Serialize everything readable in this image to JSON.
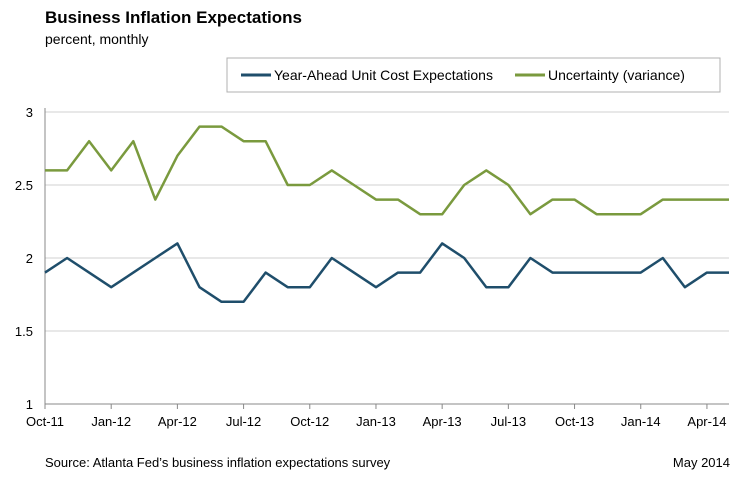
{
  "chart_data": {
    "type": "line",
    "title": "Business Inflation Expectations",
    "subtitle": "percent, monthly",
    "source": "Source: Atlanta Fed’s business inflation expectations survey",
    "date_note": "May 2014",
    "ylim": [
      1,
      3
    ],
    "yticks": [
      "1",
      "1.5",
      "2",
      "2.5",
      "3"
    ],
    "ytick_values": [
      1,
      1.5,
      2,
      2.5,
      3
    ],
    "x": [
      "Oct-11",
      "Nov-11",
      "Dec-11",
      "Jan-12",
      "Feb-12",
      "Mar-12",
      "Apr-12",
      "May-12",
      "Jun-12",
      "Jul-12",
      "Aug-12",
      "Sep-12",
      "Oct-12",
      "Nov-12",
      "Dec-12",
      "Jan-13",
      "Feb-13",
      "Mar-13",
      "Apr-13",
      "May-13",
      "Jun-13",
      "Jul-13",
      "Aug-13",
      "Sep-13",
      "Oct-13",
      "Nov-13",
      "Dec-13",
      "Jan-14",
      "Feb-14",
      "Mar-14",
      "Apr-14",
      "May-14"
    ],
    "xtick_labels": [
      "Oct-11",
      "Jan-12",
      "Apr-12",
      "Jul-12",
      "Oct-12",
      "Jan-13",
      "Apr-13",
      "Jul-13",
      "Oct-13",
      "Jan-14",
      "Apr-14"
    ],
    "legend_position": "top-right",
    "series": [
      {
        "name": "Year-Ahead Unit Cost Expectations",
        "color": "#1f4e6b",
        "values": [
          1.9,
          2.0,
          1.9,
          1.8,
          1.9,
          2.0,
          2.1,
          1.8,
          1.7,
          1.7,
          1.9,
          1.8,
          1.8,
          2.0,
          1.9,
          1.8,
          1.9,
          1.9,
          2.1,
          2.0,
          1.8,
          1.8,
          2.0,
          1.9,
          1.9,
          1.9,
          1.9,
          1.9,
          2.0,
          1.8,
          1.9,
          1.9
        ]
      },
      {
        "name": "Uncertainty (variance)",
        "color": "#7a9a3e",
        "values": [
          2.6,
          2.6,
          2.8,
          2.6,
          2.8,
          2.4,
          2.7,
          2.9,
          2.9,
          2.8,
          2.8,
          2.5,
          2.5,
          2.6,
          2.5,
          2.4,
          2.4,
          2.3,
          2.3,
          2.5,
          2.6,
          2.5,
          2.3,
          2.4,
          2.4,
          2.3,
          2.3,
          2.3,
          2.4,
          2.4,
          2.4,
          2.4
        ]
      }
    ]
  }
}
